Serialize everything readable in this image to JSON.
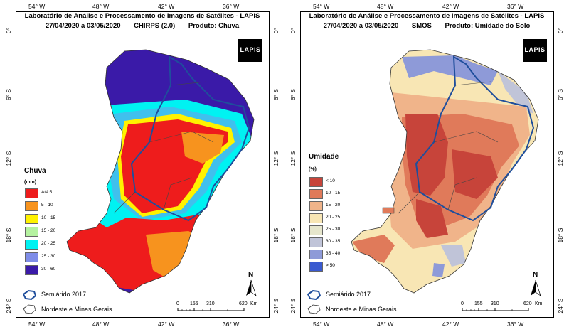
{
  "lon_ticks": [
    "54° W",
    "48° W",
    "42° W",
    "36° W"
  ],
  "lat_ticks": [
    "0°",
    "6° S",
    "12° S",
    "18° S",
    "24° S"
  ],
  "left": {
    "title_line1": "Laboratório de Análise e Processamento de Imagens de Satélites - LAPIS",
    "date_range": "27/04/2020  a  03/05/2020",
    "source": "CHIRPS (2.0)",
    "product": "Produto: Chuva",
    "logo": "LAPIS",
    "legend_title": "Chuva",
    "legend_unit": "(mm)",
    "legend": [
      {
        "label": "Até 5",
        "color": "#ee1c1c"
      },
      {
        "label": "5 - 10",
        "color": "#f7931e"
      },
      {
        "label": "10 - 15",
        "color": "#fff200"
      },
      {
        "label": "15 - 20",
        "color": "#b5f2a0"
      },
      {
        "label": "20 - 25",
        "color": "#00f2f2"
      },
      {
        "label": "25 - 30",
        "color": "#7f8de8"
      },
      {
        "label": "30 - 60",
        "color": "#3a1aa8"
      }
    ]
  },
  "right": {
    "title_line1": "Laboratório de Análise e Processamento de Imagens de Satélites - LAPIS",
    "date_range": "27/04/2020  a  03/05/2020",
    "source": "SMOS",
    "product": "Produto: Umidade do Solo",
    "logo": "LAPIS",
    "legend_title": "Umidade",
    "legend_unit": "(%)",
    "legend": [
      {
        "label": "< 10",
        "color": "#c7443a"
      },
      {
        "label": "10 - 15",
        "color": "#e07a5a"
      },
      {
        "label": "15 - 20",
        "color": "#f0b48a"
      },
      {
        "label": "20 - 25",
        "color": "#f8e6b4"
      },
      {
        "label": "25 - 30",
        "color": "#e6e6cc"
      },
      {
        "label": "30 - 35",
        "color": "#c0c4d8"
      },
      {
        "label": "35 - 40",
        "color": "#8e9ad8"
      },
      {
        "label": "> 50",
        "color": "#3a5ad0"
      }
    ]
  },
  "map_legend": {
    "semiarido": "Semiárido 2017",
    "nordeste": "Nordeste e Minas Gerais"
  },
  "scale_bar": {
    "ticks": [
      "0",
      "155",
      "310",
      "620"
    ],
    "unit": "Km"
  },
  "north_label": "N"
}
